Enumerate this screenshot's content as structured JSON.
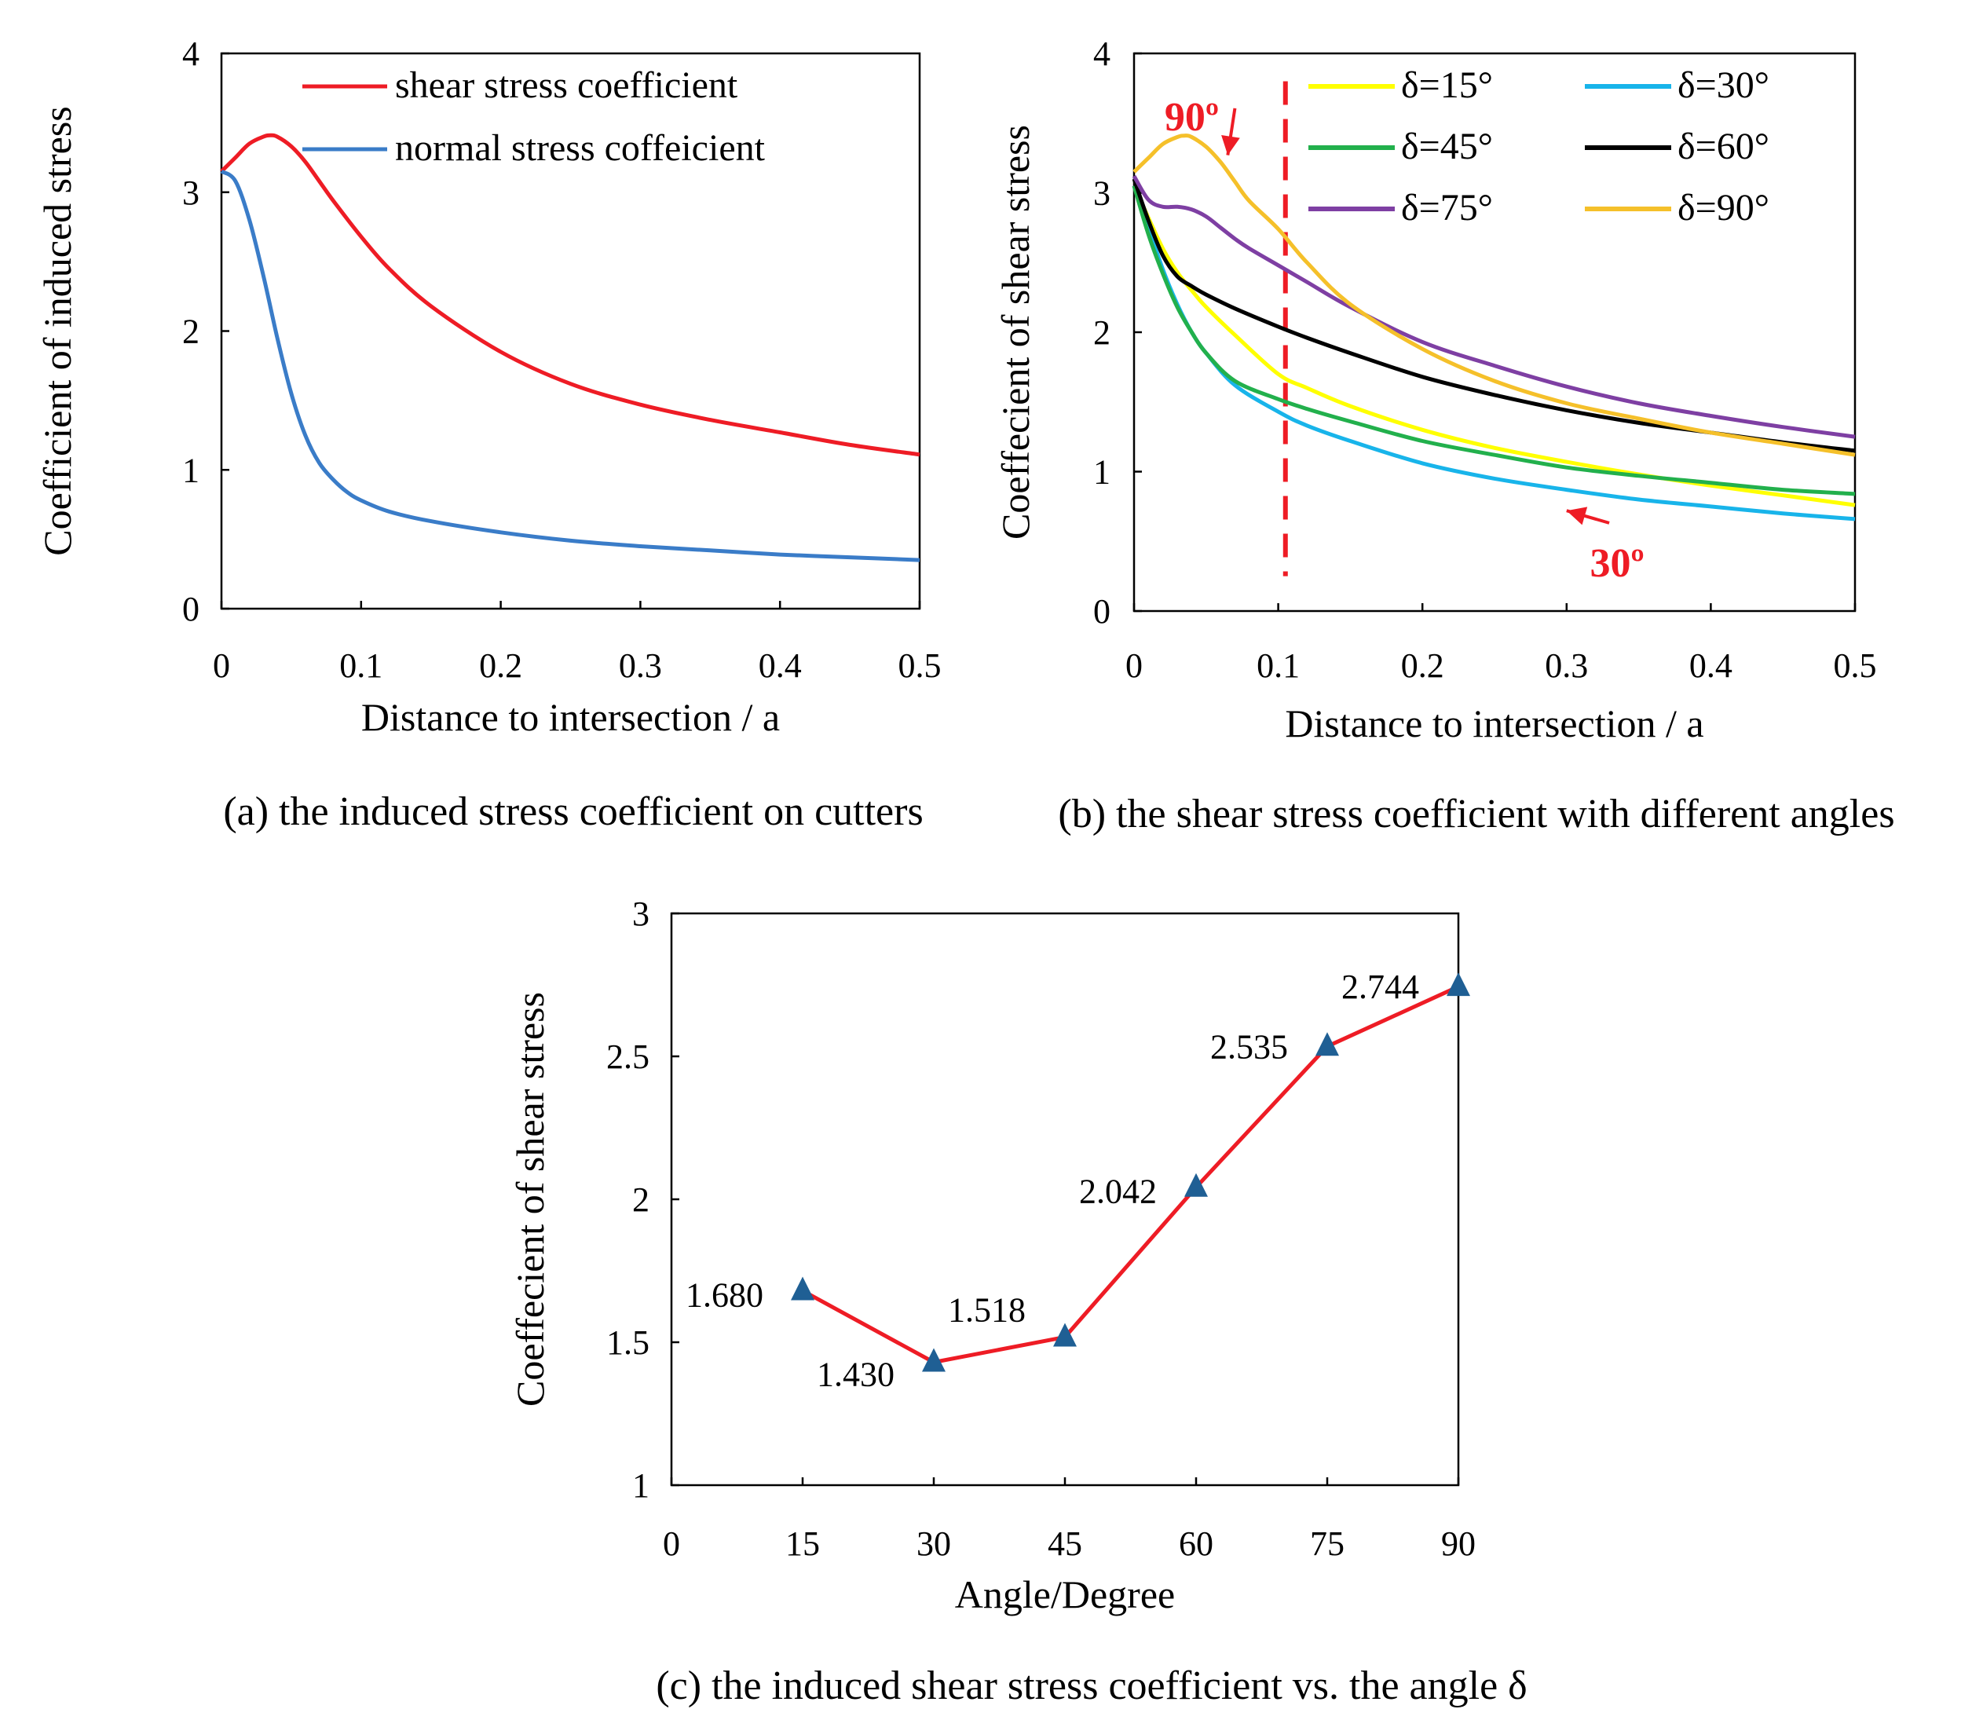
{
  "chart_data": [
    {
      "id": "a",
      "type": "line",
      "xlabel": "Distance to intersection / a",
      "ylabel": "Coefficient of induced stress",
      "caption": "(a) the induced stress coefficient on cutters",
      "xlim": [
        0,
        0.5
      ],
      "ylim": [
        0,
        4
      ],
      "xticks": [
        "0",
        "0.1",
        "0.2",
        "0.3",
        "0.4",
        "0.5"
      ],
      "yticks": [
        "0",
        "1",
        "2",
        "3",
        "4"
      ],
      "grid": false,
      "legend_position": "top-right",
      "series": [
        {
          "name": "shear stress coefficient",
          "color": "#ee1c25",
          "x": [
            0,
            0.01,
            0.02,
            0.03,
            0.035,
            0.04,
            0.05,
            0.06,
            0.07,
            0.08,
            0.1,
            0.12,
            0.15,
            0.2,
            0.25,
            0.3,
            0.35,
            0.4,
            0.45,
            0.5
          ],
          "y": [
            3.15,
            3.25,
            3.35,
            3.4,
            3.41,
            3.4,
            3.33,
            3.22,
            3.08,
            2.94,
            2.68,
            2.45,
            2.18,
            1.85,
            1.62,
            1.47,
            1.36,
            1.27,
            1.18,
            1.11
          ]
        },
        {
          "name": "normal stress coffeicient",
          "color": "#3a7cc8",
          "x": [
            0,
            0.01,
            0.02,
            0.03,
            0.04,
            0.05,
            0.06,
            0.07,
            0.08,
            0.09,
            0.1,
            0.12,
            0.15,
            0.2,
            0.25,
            0.3,
            0.35,
            0.4,
            0.45,
            0.5
          ],
          "y": [
            3.15,
            3.08,
            2.8,
            2.4,
            1.95,
            1.55,
            1.25,
            1.05,
            0.93,
            0.84,
            0.78,
            0.7,
            0.63,
            0.55,
            0.49,
            0.45,
            0.42,
            0.39,
            0.37,
            0.35
          ]
        }
      ]
    },
    {
      "id": "b",
      "type": "line",
      "xlabel": "Distance to intersection / a",
      "ylabel": "Coeffecient of shear stress",
      "caption": "(b) the shear stress coefficient with different angles",
      "xlim": [
        0,
        0.5
      ],
      "ylim": [
        0,
        4
      ],
      "xticks": [
        "0",
        "0.1",
        "0.2",
        "0.3",
        "0.4",
        "0.5"
      ],
      "yticks": [
        "0",
        "1",
        "2",
        "3",
        "4"
      ],
      "grid": false,
      "legend_position": "top-right",
      "reference_line": {
        "x": 0.105,
        "color": "#ee1c25",
        "style": "dashed",
        "y_from": 0.25,
        "y_to": 3.8
      },
      "annotations": [
        {
          "text": "90º",
          "color": "#ee1c25",
          "x": 0.04,
          "y": 3.55,
          "arrow_to": [
            0.065,
            3.27
          ]
        },
        {
          "text": "30º",
          "color": "#ee1c25",
          "x": 0.335,
          "y": 0.35,
          "arrow_to": [
            0.3,
            0.72
          ]
        }
      ],
      "series": [
        {
          "name": "δ=15°",
          "color": "#ffff00",
          "x": [
            0,
            0.01,
            0.02,
            0.03,
            0.04,
            0.05,
            0.07,
            0.1,
            0.12,
            0.15,
            0.2,
            0.25,
            0.3,
            0.35,
            0.4,
            0.45,
            0.5
          ],
          "y": [
            3.05,
            2.82,
            2.6,
            2.43,
            2.3,
            2.18,
            1.98,
            1.7,
            1.6,
            1.47,
            1.3,
            1.17,
            1.07,
            0.98,
            0.9,
            0.83,
            0.76
          ]
        },
        {
          "name": "δ=30°",
          "color": "#18b4ea",
          "x": [
            0,
            0.01,
            0.02,
            0.03,
            0.04,
            0.05,
            0.07,
            0.1,
            0.12,
            0.15,
            0.2,
            0.25,
            0.3,
            0.35,
            0.4,
            0.45,
            0.5
          ],
          "y": [
            3.05,
            2.75,
            2.45,
            2.2,
            2.0,
            1.85,
            1.62,
            1.43,
            1.33,
            1.22,
            1.06,
            0.95,
            0.87,
            0.8,
            0.75,
            0.7,
            0.66
          ]
        },
        {
          "name": "δ=45°",
          "color": "#22b04c",
          "x": [
            0,
            0.01,
            0.02,
            0.03,
            0.04,
            0.05,
            0.07,
            0.1,
            0.12,
            0.15,
            0.2,
            0.25,
            0.3,
            0.35,
            0.4,
            0.45,
            0.5
          ],
          "y": [
            3.05,
            2.7,
            2.42,
            2.18,
            2.0,
            1.85,
            1.65,
            1.52,
            1.45,
            1.36,
            1.22,
            1.12,
            1.03,
            0.97,
            0.92,
            0.87,
            0.84
          ]
        },
        {
          "name": "δ=60°",
          "color": "#000000",
          "x": [
            0,
            0.01,
            0.02,
            0.03,
            0.04,
            0.05,
            0.07,
            0.1,
            0.12,
            0.15,
            0.2,
            0.25,
            0.3,
            0.35,
            0.4,
            0.45,
            0.5
          ],
          "y": [
            3.1,
            2.8,
            2.55,
            2.4,
            2.33,
            2.27,
            2.17,
            2.04,
            1.96,
            1.85,
            1.68,
            1.55,
            1.44,
            1.35,
            1.28,
            1.21,
            1.15
          ]
        },
        {
          "name": "δ=75°",
          "color": "#7e3fa3",
          "x": [
            0,
            0.01,
            0.02,
            0.03,
            0.04,
            0.05,
            0.06,
            0.07,
            0.08,
            0.1,
            0.12,
            0.15,
            0.2,
            0.25,
            0.3,
            0.35,
            0.4,
            0.45,
            0.5
          ],
          "y": [
            3.12,
            2.95,
            2.9,
            2.9,
            2.88,
            2.83,
            2.75,
            2.67,
            2.6,
            2.48,
            2.36,
            2.18,
            1.93,
            1.76,
            1.61,
            1.49,
            1.4,
            1.32,
            1.25
          ]
        },
        {
          "name": "δ=90°",
          "color": "#f5c02a",
          "x": [
            0,
            0.01,
            0.02,
            0.03,
            0.035,
            0.04,
            0.05,
            0.06,
            0.07,
            0.08,
            0.1,
            0.12,
            0.15,
            0.2,
            0.25,
            0.3,
            0.35,
            0.4,
            0.45,
            0.5
          ],
          "y": [
            3.15,
            3.25,
            3.35,
            3.4,
            3.41,
            3.4,
            3.33,
            3.22,
            3.08,
            2.94,
            2.74,
            2.5,
            2.2,
            1.88,
            1.65,
            1.49,
            1.38,
            1.28,
            1.2,
            1.12
          ]
        }
      ]
    },
    {
      "id": "c",
      "type": "line",
      "xlabel": "Angle/Degree",
      "ylabel": "Coeffecient of shear stress",
      "caption": "(c) the induced shear stress coefficient vs. the angle δ",
      "xlim": [
        0,
        90
      ],
      "ylim": [
        1,
        3
      ],
      "xticks": [
        "0",
        "15",
        "30",
        "45",
        "60",
        "75",
        "90"
      ],
      "yticks": [
        "1",
        "1.5",
        "2",
        "2.5",
        "3"
      ],
      "grid": false,
      "marker": "triangle",
      "series": [
        {
          "line_color": "#ee1c25",
          "marker_color": "#1f5f94",
          "x": [
            15,
            30,
            45,
            60,
            75,
            90
          ],
          "y": [
            1.68,
            1.43,
            1.518,
            2.042,
            2.535,
            2.744
          ],
          "labels": [
            "1.680",
            "1.430",
            "1.518",
            "2.042",
            "2.535",
            "2.744"
          ]
        }
      ]
    }
  ]
}
